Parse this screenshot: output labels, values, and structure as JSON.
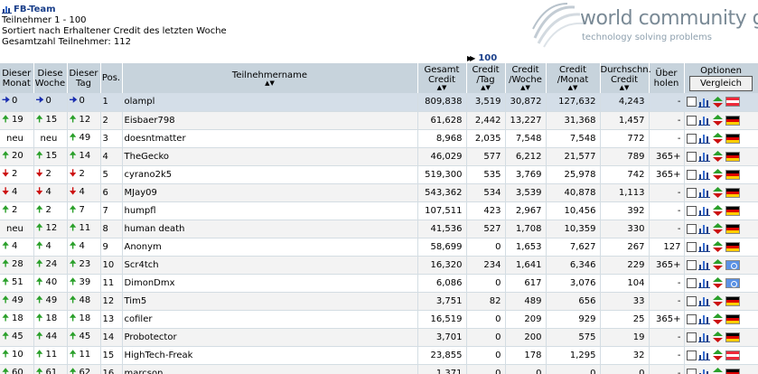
{
  "header": {
    "team_name": "FB-Team",
    "line1": "Teilnehmer 1 - 100",
    "line2": "Sortiert nach Erhaltener Credit des letzten Woche",
    "line3": "Gesamtzahl Teilnehmer: 112"
  },
  "logo": {
    "title": "world community grid.",
    "subtitle": "technology solving problems"
  },
  "pager": {
    "next_link": "100"
  },
  "columns": {
    "monat": "Dieser Monat",
    "woche": "Diese Woche",
    "tag": "Dieser Tag",
    "pos": "Pos.",
    "name": "Teilnehmername",
    "gesamt": "Gesamt Credit",
    "tag_credit": "Credit /Tag",
    "woche_credit": "Credit /Woche",
    "monat_credit": "Credit /Monat",
    "durchschn": "Durchschn. Credit",
    "ueberholen": "Über holen",
    "optionen": "Optionen",
    "vergleich": "Vergleich"
  },
  "colors": {
    "up": "#2aa02a",
    "down": "#cc1111",
    "same": "#1a2eb0",
    "header_bg": "#c7d3dc"
  },
  "rows": [
    {
      "m_dir": "same",
      "m": "0",
      "w_dir": "same",
      "w": "0",
      "t_dir": "same",
      "t": "0",
      "pos": "1",
      "name": "olampl",
      "gesamt": "809,838",
      "tag": "3,519",
      "woche": "30,872",
      "monat": "127,632",
      "avg": "4,243",
      "ueb": "-",
      "flag": "at"
    },
    {
      "m_dir": "up",
      "m": "19",
      "w_dir": "up",
      "w": "15",
      "t_dir": "up",
      "t": "12",
      "pos": "2",
      "name": "Eisbaer798",
      "gesamt": "61,628",
      "tag": "2,442",
      "woche": "13,227",
      "monat": "31,368",
      "avg": "1,457",
      "ueb": "-",
      "flag": "de"
    },
    {
      "m_dir": "none",
      "m": "neu",
      "w_dir": "none",
      "w": "neu",
      "t_dir": "up",
      "t": "49",
      "pos": "3",
      "name": "doesntmatter",
      "gesamt": "8,968",
      "tag": "2,035",
      "woche": "7,548",
      "monat": "7,548",
      "avg": "772",
      "ueb": "-",
      "flag": "de"
    },
    {
      "m_dir": "up",
      "m": "20",
      "w_dir": "up",
      "w": "15",
      "t_dir": "up",
      "t": "14",
      "pos": "4",
      "name": "TheGecko",
      "gesamt": "46,029",
      "tag": "577",
      "woche": "6,212",
      "monat": "21,577",
      "avg": "789",
      "ueb": "365+",
      "flag": "de"
    },
    {
      "m_dir": "down",
      "m": "2",
      "w_dir": "down",
      "w": "2",
      "t_dir": "down",
      "t": "2",
      "pos": "5",
      "name": "cyrano2k5",
      "gesamt": "519,300",
      "tag": "535",
      "woche": "3,769",
      "monat": "25,978",
      "avg": "742",
      "ueb": "365+",
      "flag": "de"
    },
    {
      "m_dir": "down",
      "m": "4",
      "w_dir": "down",
      "w": "4",
      "t_dir": "down",
      "t": "4",
      "pos": "6",
      "name": "MJay09",
      "gesamt": "543,362",
      "tag": "534",
      "woche": "3,539",
      "monat": "40,878",
      "avg": "1,113",
      "ueb": "-",
      "flag": "de"
    },
    {
      "m_dir": "up",
      "m": "2",
      "w_dir": "up",
      "w": "2",
      "t_dir": "up",
      "t": "7",
      "pos": "7",
      "name": "humpfl",
      "gesamt": "107,511",
      "tag": "423",
      "woche": "2,967",
      "monat": "10,456",
      "avg": "392",
      "ueb": "-",
      "flag": "de"
    },
    {
      "m_dir": "none",
      "m": "neu",
      "w_dir": "up",
      "w": "12",
      "t_dir": "up",
      "t": "11",
      "pos": "8",
      "name": "human death",
      "gesamt": "41,536",
      "tag": "527",
      "woche": "1,708",
      "monat": "10,359",
      "avg": "330",
      "ueb": "-",
      "flag": "de"
    },
    {
      "m_dir": "up",
      "m": "4",
      "w_dir": "up",
      "w": "4",
      "t_dir": "up",
      "t": "4",
      "pos": "9",
      "name": "Anonym",
      "gesamt": "58,699",
      "tag": "0",
      "woche": "1,653",
      "monat": "7,627",
      "avg": "267",
      "ueb": "127",
      "flag": "de"
    },
    {
      "m_dir": "up",
      "m": "28",
      "w_dir": "up",
      "w": "24",
      "t_dir": "up",
      "t": "23",
      "pos": "10",
      "name": "Scr4tch",
      "gesamt": "16,320",
      "tag": "234",
      "woche": "1,641",
      "monat": "6,346",
      "avg": "229",
      "ueb": "365+",
      "flag": "un"
    },
    {
      "m_dir": "up",
      "m": "51",
      "w_dir": "up",
      "w": "40",
      "t_dir": "up",
      "t": "39",
      "pos": "11",
      "name": "DimonDmx",
      "gesamt": "6,086",
      "tag": "0",
      "woche": "617",
      "monat": "3,076",
      "avg": "104",
      "ueb": "-",
      "flag": "un"
    },
    {
      "m_dir": "up",
      "m": "49",
      "w_dir": "up",
      "w": "49",
      "t_dir": "up",
      "t": "48",
      "pos": "12",
      "name": "Tim5",
      "gesamt": "3,751",
      "tag": "82",
      "woche": "489",
      "monat": "656",
      "avg": "33",
      "ueb": "-",
      "flag": "de"
    },
    {
      "m_dir": "up",
      "m": "18",
      "w_dir": "up",
      "w": "18",
      "t_dir": "up",
      "t": "18",
      "pos": "13",
      "name": "cofiler",
      "gesamt": "16,519",
      "tag": "0",
      "woche": "209",
      "monat": "929",
      "avg": "25",
      "ueb": "365+",
      "flag": "de"
    },
    {
      "m_dir": "up",
      "m": "45",
      "w_dir": "up",
      "w": "44",
      "t_dir": "up",
      "t": "45",
      "pos": "14",
      "name": "Probotector",
      "gesamt": "3,701",
      "tag": "0",
      "woche": "200",
      "monat": "575",
      "avg": "19",
      "ueb": "-",
      "flag": "de"
    },
    {
      "m_dir": "up",
      "m": "10",
      "w_dir": "up",
      "w": "11",
      "t_dir": "up",
      "t": "11",
      "pos": "15",
      "name": "HighTech-Freak",
      "gesamt": "23,855",
      "tag": "0",
      "woche": "178",
      "monat": "1,295",
      "avg": "32",
      "ueb": "-",
      "flag": "at"
    },
    {
      "m_dir": "up",
      "m": "60",
      "w_dir": "up",
      "w": "61",
      "t_dir": "up",
      "t": "62",
      "pos": "16",
      "name": "marcson",
      "gesamt": "1,371",
      "tag": "0",
      "woche": "0",
      "monat": "0",
      "avg": "0",
      "ueb": "-",
      "flag": "de"
    }
  ]
}
